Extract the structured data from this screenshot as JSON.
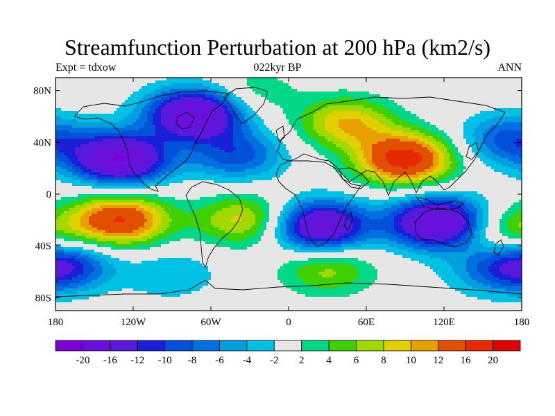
{
  "header": {
    "title": "Streamfunction Perturbation at 200 hPa (km2/s)",
    "left_label": "Expt = tdxow",
    "center_label": "022kyr BP",
    "right_label": "ANN"
  },
  "map": {
    "projection": "cylindrical-equidistant",
    "lon_range": [
      -180,
      180
    ],
    "lat_range": [
      -90,
      90
    ],
    "lat_ticks": [
      {
        "value": 80,
        "label": "80N"
      },
      {
        "value": 40,
        "label": "40N"
      },
      {
        "value": 0,
        "label": "0"
      },
      {
        "value": -40,
        "label": "40S"
      },
      {
        "value": -80,
        "label": "80S"
      }
    ],
    "lon_ticks": [
      {
        "value": -180,
        "label": "180"
      },
      {
        "value": -120,
        "label": "120W"
      },
      {
        "value": -60,
        "label": "60W"
      },
      {
        "value": 0,
        "label": "0"
      },
      {
        "value": 60,
        "label": "60E"
      },
      {
        "value": 120,
        "label": "120E"
      },
      {
        "value": 180,
        "label": "180"
      }
    ],
    "neutral_color": "#e6e6e6"
  },
  "colorbar": {
    "colors": [
      "#7a00d6",
      "#6a10dc",
      "#5a18dc",
      "#1a20d8",
      "#0050d8",
      "#0070e0",
      "#00a0e0",
      "#00c0e4",
      "#e6e6e6",
      "#00d888",
      "#40d000",
      "#a0d800",
      "#e0d000",
      "#e8a000",
      "#e05000",
      "#e82800",
      "#e00000"
    ],
    "labels": [
      "-20",
      "-16",
      "-12",
      "-10",
      "-8",
      "-6",
      "-4",
      "-2",
      "2",
      "4",
      "6",
      "8",
      "10",
      "12",
      "16",
      "20"
    ]
  },
  "field_centers": [
    {
      "lon": -130,
      "lat": 27,
      "value": -20
    },
    {
      "lon": -72,
      "lat": 62,
      "value": -20
    },
    {
      "lon": -40,
      "lat": 30,
      "value": -9
    },
    {
      "lon": 170,
      "lat": 42,
      "value": -9
    },
    {
      "lon": 90,
      "lat": 27,
      "value": 18
    },
    {
      "lon": 45,
      "lat": 55,
      "value": 10
    },
    {
      "lon": -130,
      "lat": -20,
      "value": 16
    },
    {
      "lon": -35,
      "lat": -20,
      "value": 9
    },
    {
      "lon": 25,
      "lat": -25,
      "value": -18
    },
    {
      "lon": 115,
      "lat": -22,
      "value": -20
    },
    {
      "lon": 170,
      "lat": -30,
      "value": 7
    },
    {
      "lon": 30,
      "lat": -58,
      "value": 7
    },
    {
      "lon": -170,
      "lat": -55,
      "value": -7
    },
    {
      "lon": 175,
      "lat": -55,
      "value": -7
    },
    {
      "lon": -90,
      "lat": -62,
      "value": -4
    },
    {
      "lon": -30,
      "lat": 78,
      "value": 4
    },
    {
      "lon": 150,
      "lat": -60,
      "value": -3
    }
  ]
}
